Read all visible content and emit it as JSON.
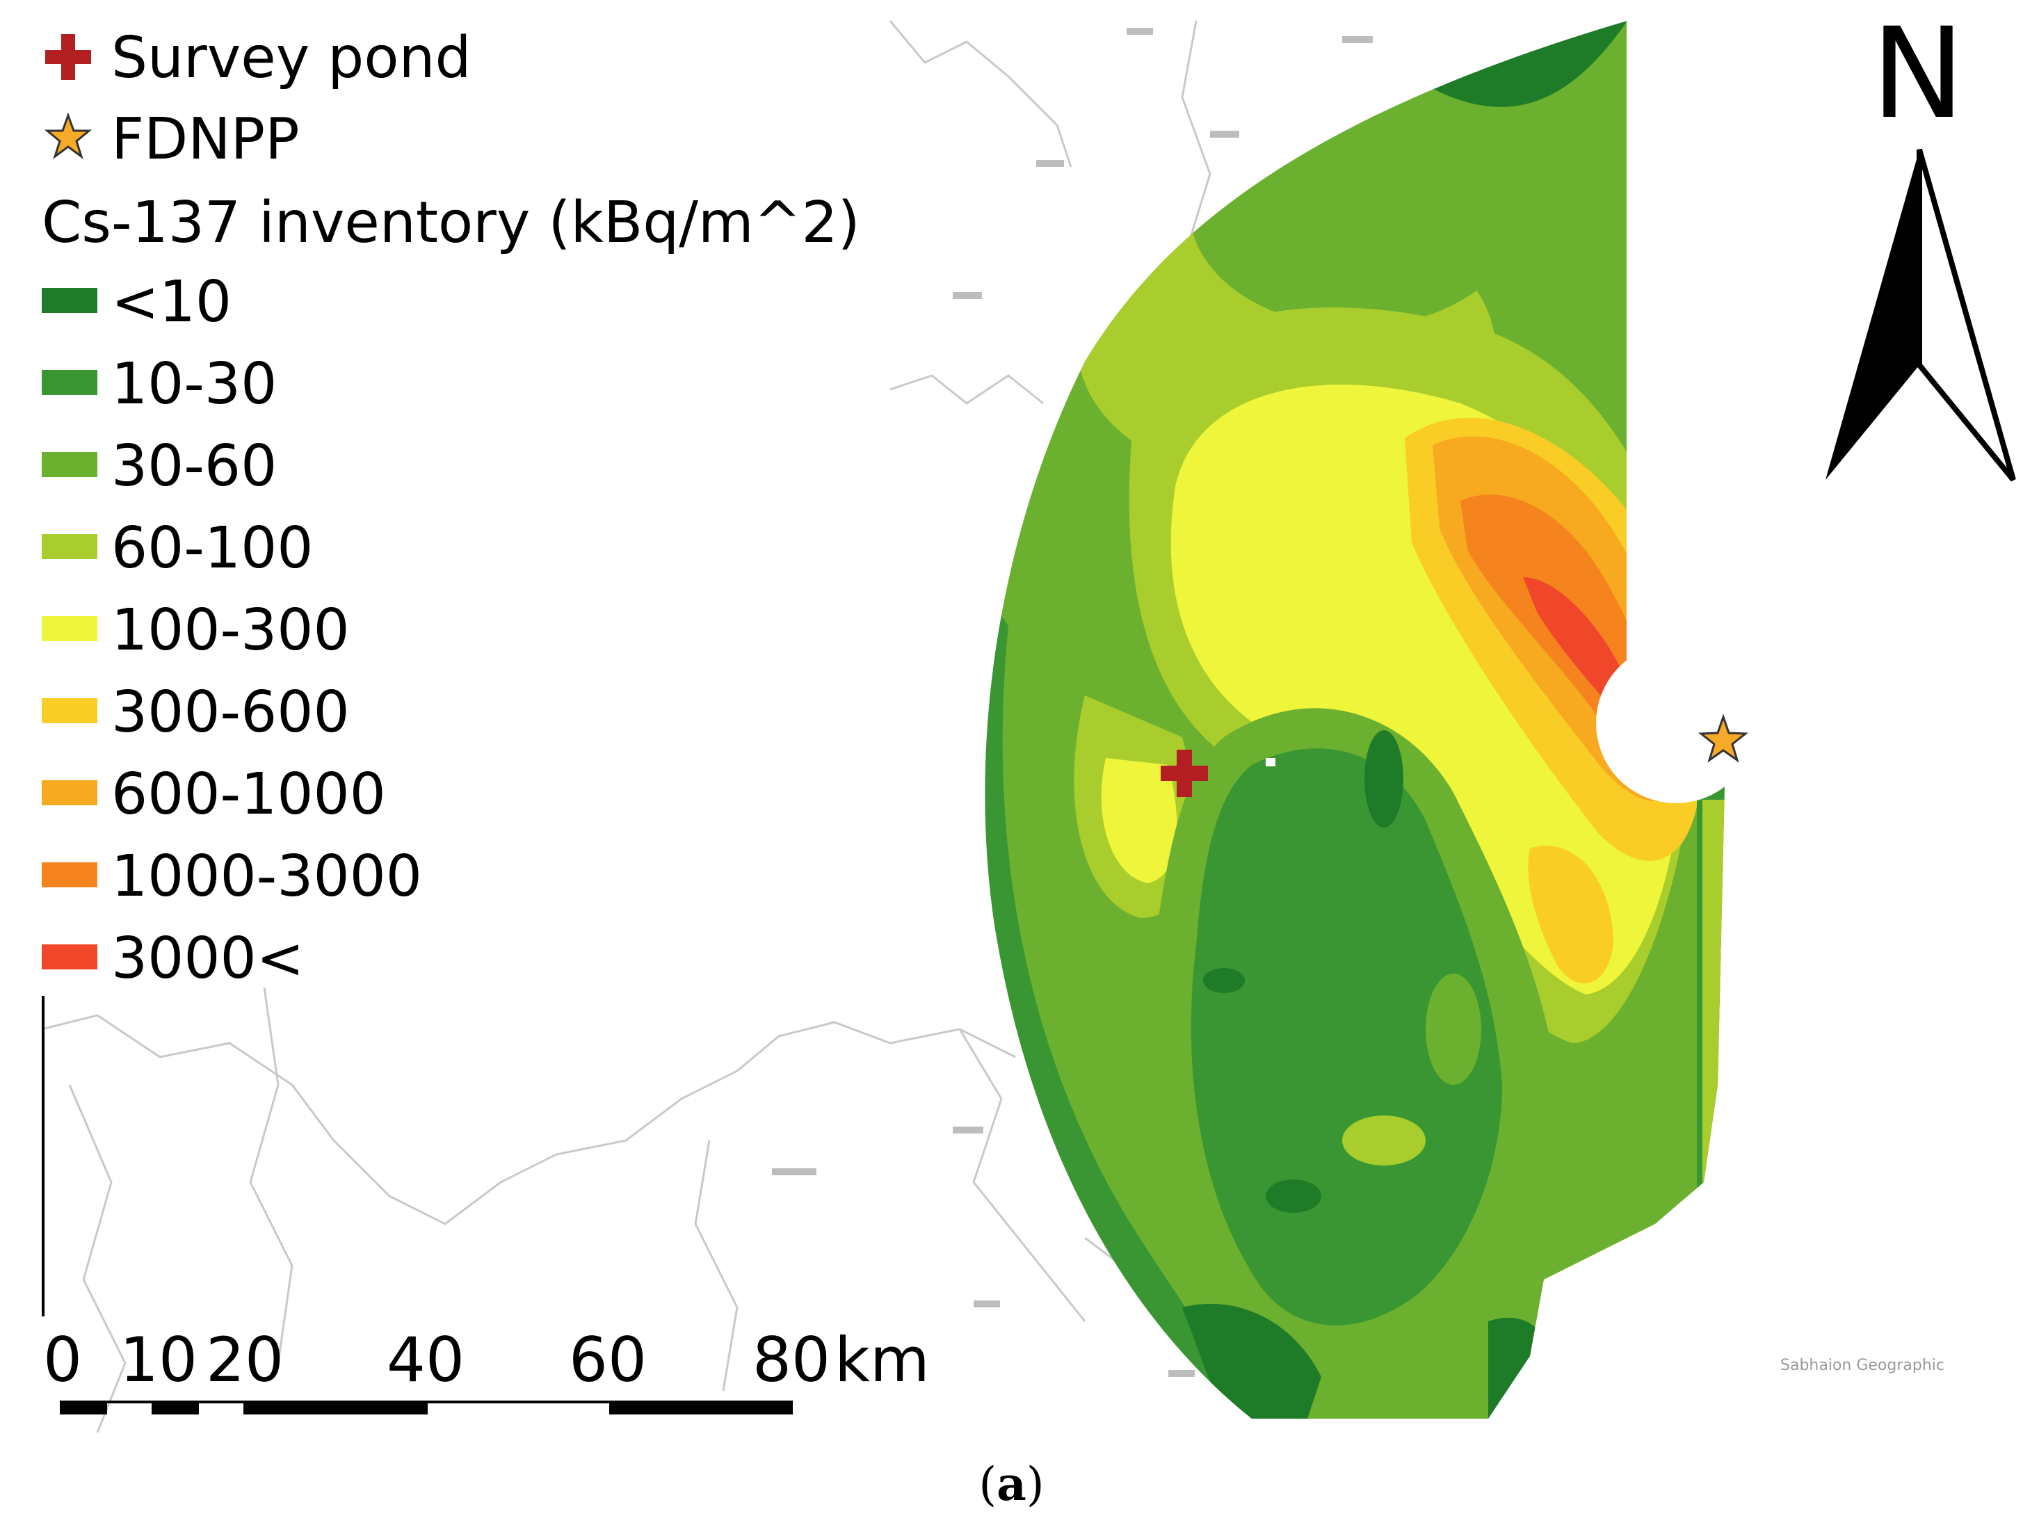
{
  "legend": {
    "survey_pond_label": "Survey pond",
    "fdnpp_label": "FDNPP",
    "title": "Cs-137 inventory (kBq/m^2)",
    "classes": [
      {
        "label": "<10",
        "color": "#1e7b27"
      },
      {
        "label": "10-30",
        "color": "#3a9632"
      },
      {
        "label": "30-60",
        "color": "#6cb02f"
      },
      {
        "label": "60-100",
        "color": "#a8cd2c"
      },
      {
        "label": "100-300",
        "color": "#eef53b"
      },
      {
        "label": "300-600",
        "color": "#f9cc26"
      },
      {
        "label": "600-1000",
        "color": "#f7a91f"
      },
      {
        "label": "1000-3000",
        "color": "#f5841f"
      },
      {
        "label": "3000<",
        "color": "#f0472b"
      }
    ],
    "marker_colors": {
      "survey_pond": "#b31e22",
      "fdnpp": "#f7a928"
    }
  },
  "scale_bar": {
    "ticks": [
      "0",
      "10",
      "20",
      "40",
      "60",
      "80"
    ],
    "unit": "km"
  },
  "north_arrow": {
    "label": "N"
  },
  "attribution": "Sabhaion Geographic",
  "caption": {
    "open": "(",
    "letter": "a",
    "close": ")"
  }
}
